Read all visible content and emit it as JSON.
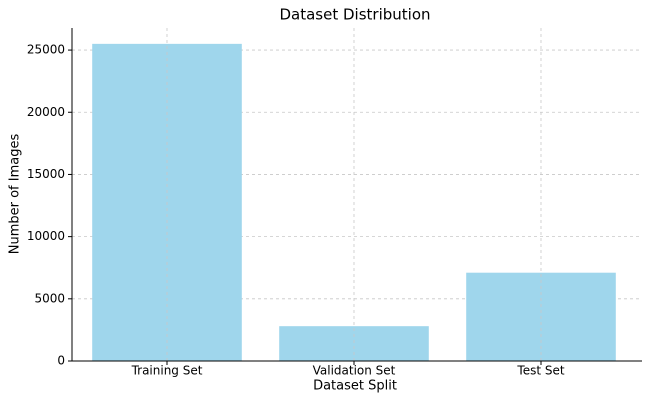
{
  "chart_data": {
    "type": "bar",
    "title": "Dataset Distribution",
    "x_label": "Dataset Split",
    "y_label": "Number of Images",
    "categories": [
      "Training Set",
      "Validation Set",
      "Test Set"
    ],
    "values": [
      25500,
      2800,
      7100
    ],
    "color": "#9fd6ec",
    "ylim": [
      0,
      26775
    ],
    "yticks": [
      0,
      5000,
      10000,
      15000,
      20000,
      25000
    ],
    "grid": true
  }
}
